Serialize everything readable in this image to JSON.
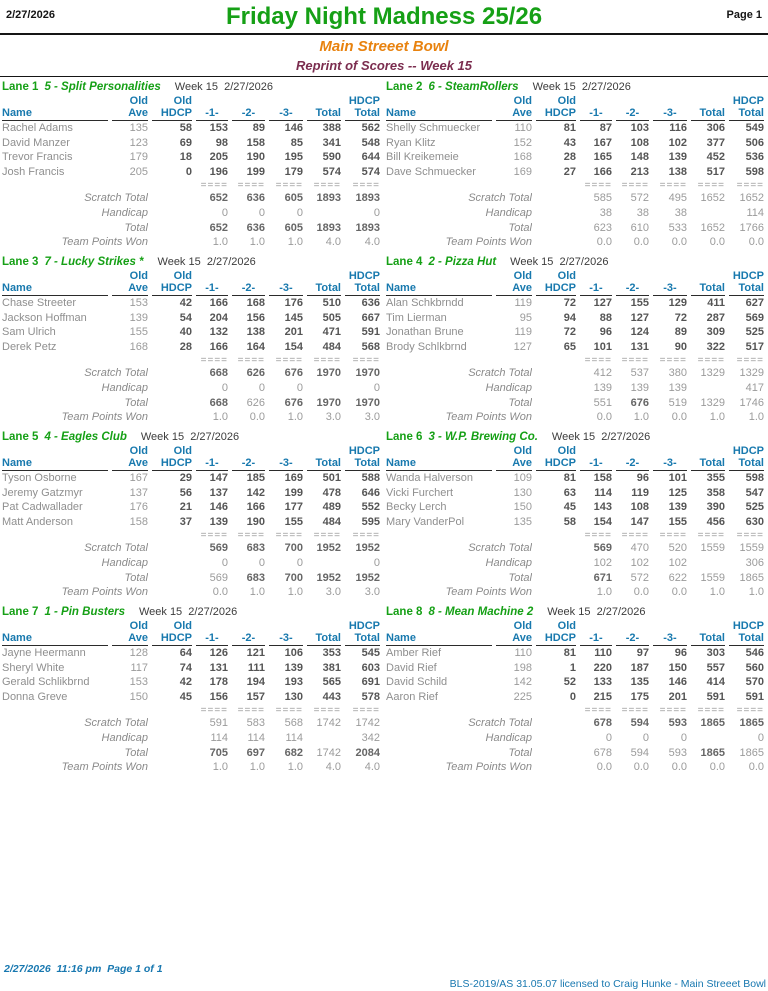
{
  "header": {
    "date": "2/27/2026",
    "title": "Friday Night Madness 25/26",
    "page": "Page 1",
    "venue": "Main Streeet Bowl",
    "subtitle": "Reprint of Scores -- Week 15"
  },
  "footer": {
    "left": "2/27/2026  11:16 pm  Page 1 of 1",
    "right": "BLS-2019/AS 31.05.07 licensed to Craig Hunke - Main Streeet Bowl"
  },
  "labels": {
    "week": "Week 15  2/27/2026",
    "old": "Old",
    "hdcp_top": "HDCP",
    "name": "Name",
    "ave": "Ave",
    "hdcp": "HDCP",
    "g1": "-1-",
    "g2": "-2-",
    "g3": "-3-",
    "total": "Total",
    "hdcp_total": "Total",
    "scratch": "Scratch Total",
    "handicap": "Handicap",
    "total_row": "Total",
    "points": "Team Points Won",
    "sep": "===="
  },
  "colors": {
    "title_green": "#16A016",
    "venue_orange": "#E8820E",
    "subtitle_maroon": "#7B2D4F",
    "header_teal": "#1879AE",
    "footer_blue": "#1878B0"
  },
  "lanes": [
    {
      "lane": "Lane 1",
      "team": "5 - Split Personalities",
      "players": [
        {
          "name": "Rachel Adams",
          "ave": "135",
          "hdcp": "58",
          "g1": "153",
          "g2": "89",
          "g3": "146",
          "total": "388",
          "ht": "562"
        },
        {
          "name": "David Manzer",
          "ave": "123",
          "hdcp": "69",
          "g1": "98",
          "g2": "158",
          "g3": "85",
          "total": "341",
          "ht": "548"
        },
        {
          "name": "Trevor Francis",
          "ave": "179",
          "hdcp": "18",
          "g1": "205",
          "g2": "190",
          "g3": "195",
          "total": "590",
          "ht": "644"
        },
        {
          "name": "Josh Francis",
          "ave": "205",
          "hdcp": "0",
          "g1": "196",
          "g2": "199",
          "g3": "179",
          "total": "574",
          "ht": "574"
        }
      ],
      "scratch": {
        "g1": "652",
        "g2": "636",
        "g3": "605",
        "total": "1893",
        "ht": "1893"
      },
      "scratch_bold": [
        1,
        1,
        1,
        1,
        1
      ],
      "handicap": {
        "g1": "0",
        "g2": "0",
        "g3": "0",
        "total": "",
        "ht": "0"
      },
      "total": {
        "g1": "652",
        "g2": "636",
        "g3": "605",
        "total": "1893",
        "ht": "1893"
      },
      "total_bold": [
        1,
        1,
        1,
        1,
        1
      ],
      "points": {
        "g1": "1.0",
        "g2": "1.0",
        "g3": "1.0",
        "total": "4.0",
        "ht": "4.0"
      }
    },
    {
      "lane": "Lane 2",
      "team": "6 - SteamRollers",
      "players": [
        {
          "name": "Shelly Schmuecker",
          "ave": "110",
          "hdcp": "81",
          "g1": "87",
          "g2": "103",
          "g3": "116",
          "total": "306",
          "ht": "549"
        },
        {
          "name": "Ryan Klitz",
          "ave": "152",
          "hdcp": "43",
          "g1": "167",
          "g2": "108",
          "g3": "102",
          "total": "377",
          "ht": "506"
        },
        {
          "name": "Bill Kreikemeie",
          "ave": "168",
          "hdcp": "28",
          "g1": "165",
          "g2": "148",
          "g3": "139",
          "total": "452",
          "ht": "536"
        },
        {
          "name": "Dave Schmuecker",
          "ave": "169",
          "hdcp": "27",
          "g1": "166",
          "g2": "213",
          "g3": "138",
          "total": "517",
          "ht": "598"
        }
      ],
      "scratch": {
        "g1": "585",
        "g2": "572",
        "g3": "495",
        "total": "1652",
        "ht": "1652"
      },
      "scratch_bold": [
        0,
        0,
        0,
        0,
        0
      ],
      "handicap": {
        "g1": "38",
        "g2": "38",
        "g3": "38",
        "total": "",
        "ht": "114"
      },
      "total": {
        "g1": "623",
        "g2": "610",
        "g3": "533",
        "total": "1652",
        "ht": "1766"
      },
      "total_bold": [
        0,
        0,
        0,
        0,
        0
      ],
      "points": {
        "g1": "0.0",
        "g2": "0.0",
        "g3": "0.0",
        "total": "0.0",
        "ht": "0.0"
      }
    },
    {
      "lane": "Lane 3",
      "team": "7 - Lucky Strikes *",
      "players": [
        {
          "name": "Chase Streeter",
          "ave": "153",
          "hdcp": "42",
          "g1": "166",
          "g2": "168",
          "g3": "176",
          "total": "510",
          "ht": "636"
        },
        {
          "name": "Jackson Hoffman",
          "ave": "139",
          "hdcp": "54",
          "g1": "204",
          "g2": "156",
          "g3": "145",
          "total": "505",
          "ht": "667"
        },
        {
          "name": "Sam Ulrich",
          "ave": "155",
          "hdcp": "40",
          "g1": "132",
          "g2": "138",
          "g3": "201",
          "total": "471",
          "ht": "591"
        },
        {
          "name": "Derek Petz",
          "ave": "168",
          "hdcp": "28",
          "g1": "166",
          "g2": "164",
          "g3": "154",
          "total": "484",
          "ht": "568"
        }
      ],
      "scratch": {
        "g1": "668",
        "g2": "626",
        "g3": "676",
        "total": "1970",
        "ht": "1970"
      },
      "scratch_bold": [
        1,
        1,
        1,
        1,
        1
      ],
      "handicap": {
        "g1": "0",
        "g2": "0",
        "g3": "0",
        "total": "",
        "ht": "0"
      },
      "total": {
        "g1": "668",
        "g2": "626",
        "g3": "676",
        "total": "1970",
        "ht": "1970"
      },
      "total_bold": [
        1,
        0,
        1,
        1,
        1
      ],
      "points": {
        "g1": "1.0",
        "g2": "0.0",
        "g3": "1.0",
        "total": "3.0",
        "ht": "3.0"
      }
    },
    {
      "lane": "Lane 4",
      "team": "2 - Pizza Hut",
      "players": [
        {
          "name": "Alan Schkbrndd",
          "ave": "119",
          "hdcp": "72",
          "g1": "127",
          "g2": "155",
          "g3": "129",
          "total": "411",
          "ht": "627"
        },
        {
          "name": "Tim Lierman",
          "ave": "95",
          "hdcp": "94",
          "g1": "88",
          "g2": "127",
          "g3": "72",
          "total": "287",
          "ht": "569"
        },
        {
          "name": "Jonathan Brune",
          "ave": "119",
          "hdcp": "72",
          "g1": "96",
          "g2": "124",
          "g3": "89",
          "total": "309",
          "ht": "525"
        },
        {
          "name": "Brody Schlkbrnd",
          "ave": "127",
          "hdcp": "65",
          "g1": "101",
          "g2": "131",
          "g3": "90",
          "total": "322",
          "ht": "517"
        }
      ],
      "scratch": {
        "g1": "412",
        "g2": "537",
        "g3": "380",
        "total": "1329",
        "ht": "1329"
      },
      "scratch_bold": [
        0,
        0,
        0,
        0,
        0
      ],
      "handicap": {
        "g1": "139",
        "g2": "139",
        "g3": "139",
        "total": "",
        "ht": "417"
      },
      "total": {
        "g1": "551",
        "g2": "676",
        "g3": "519",
        "total": "1329",
        "ht": "1746"
      },
      "total_bold": [
        0,
        1,
        0,
        0,
        0
      ],
      "points": {
        "g1": "0.0",
        "g2": "1.0",
        "g3": "0.0",
        "total": "1.0",
        "ht": "1.0"
      }
    },
    {
      "lane": "Lane 5",
      "team": "4 - Eagles Club",
      "players": [
        {
          "name": "Tyson Osborne",
          "ave": "167",
          "hdcp": "29",
          "g1": "147",
          "g2": "185",
          "g3": "169",
          "total": "501",
          "ht": "588"
        },
        {
          "name": "Jeremy Gatzmyr",
          "ave": "137",
          "hdcp": "56",
          "g1": "137",
          "g2": "142",
          "g3": "199",
          "total": "478",
          "ht": "646"
        },
        {
          "name": "Pat Cadwallader",
          "ave": "176",
          "hdcp": "21",
          "g1": "146",
          "g2": "166",
          "g3": "177",
          "total": "489",
          "ht": "552"
        },
        {
          "name": "Matt Anderson",
          "ave": "158",
          "hdcp": "37",
          "g1": "139",
          "g2": "190",
          "g3": "155",
          "total": "484",
          "ht": "595"
        }
      ],
      "scratch": {
        "g1": "569",
        "g2": "683",
        "g3": "700",
        "total": "1952",
        "ht": "1952"
      },
      "scratch_bold": [
        1,
        1,
        1,
        1,
        1
      ],
      "handicap": {
        "g1": "0",
        "g2": "0",
        "g3": "0",
        "total": "",
        "ht": "0"
      },
      "total": {
        "g1": "569",
        "g2": "683",
        "g3": "700",
        "total": "1952",
        "ht": "1952"
      },
      "total_bold": [
        0,
        1,
        1,
        1,
        1
      ],
      "points": {
        "g1": "0.0",
        "g2": "1.0",
        "g3": "1.0",
        "total": "3.0",
        "ht": "3.0"
      }
    },
    {
      "lane": "Lane 6",
      "team": "3 - W.P. Brewing Co.",
      "players": [
        {
          "name": "Wanda Halverson",
          "ave": "109",
          "hdcp": "81",
          "g1": "158",
          "g2": "96",
          "g3": "101",
          "total": "355",
          "ht": "598"
        },
        {
          "name": "Vicki Furchert",
          "ave": "130",
          "hdcp": "63",
          "g1": "114",
          "g2": "119",
          "g3": "125",
          "total": "358",
          "ht": "547"
        },
        {
          "name": "Becky Lerch",
          "ave": "150",
          "hdcp": "45",
          "g1": "143",
          "g2": "108",
          "g3": "139",
          "total": "390",
          "ht": "525"
        },
        {
          "name": "Mary VanderPol",
          "ave": "135",
          "hdcp": "58",
          "g1": "154",
          "g2": "147",
          "g3": "155",
          "total": "456",
          "ht": "630"
        }
      ],
      "scratch": {
        "g1": "569",
        "g2": "470",
        "g3": "520",
        "total": "1559",
        "ht": "1559"
      },
      "scratch_bold": [
        1,
        0,
        0,
        0,
        0
      ],
      "handicap": {
        "g1": "102",
        "g2": "102",
        "g3": "102",
        "total": "",
        "ht": "306"
      },
      "total": {
        "g1": "671",
        "g2": "572",
        "g3": "622",
        "total": "1559",
        "ht": "1865"
      },
      "total_bold": [
        1,
        0,
        0,
        0,
        0
      ],
      "points": {
        "g1": "1.0",
        "g2": "0.0",
        "g3": "0.0",
        "total": "1.0",
        "ht": "1.0"
      }
    },
    {
      "lane": "Lane 7",
      "team": "1 - Pin Busters",
      "players": [
        {
          "name": "Jayne Heermann",
          "ave": "128",
          "hdcp": "64",
          "g1": "126",
          "g2": "121",
          "g3": "106",
          "total": "353",
          "ht": "545"
        },
        {
          "name": "Sheryl White",
          "ave": "117",
          "hdcp": "74",
          "g1": "131",
          "g2": "111",
          "g3": "139",
          "total": "381",
          "ht": "603"
        },
        {
          "name": "Gerald Schlikbrnd",
          "ave": "153",
          "hdcp": "42",
          "g1": "178",
          "g2": "194",
          "g3": "193",
          "total": "565",
          "ht": "691"
        },
        {
          "name": "Donna Greve",
          "ave": "150",
          "hdcp": "45",
          "g1": "156",
          "g2": "157",
          "g3": "130",
          "total": "443",
          "ht": "578"
        }
      ],
      "scratch": {
        "g1": "591",
        "g2": "583",
        "g3": "568",
        "total": "1742",
        "ht": "1742"
      },
      "scratch_bold": [
        0,
        0,
        0,
        0,
        0
      ],
      "handicap": {
        "g1": "114",
        "g2": "114",
        "g3": "114",
        "total": "",
        "ht": "342"
      },
      "total": {
        "g1": "705",
        "g2": "697",
        "g3": "682",
        "total": "1742",
        "ht": "2084"
      },
      "total_bold": [
        1,
        1,
        1,
        0,
        1
      ],
      "points": {
        "g1": "1.0",
        "g2": "1.0",
        "g3": "1.0",
        "total": "4.0",
        "ht": "4.0"
      }
    },
    {
      "lane": "Lane 8",
      "team": "8 - Mean Machine 2",
      "players": [
        {
          "name": "Amber Rief",
          "ave": "110",
          "hdcp": "81",
          "g1": "110",
          "g2": "97",
          "g3": "96",
          "total": "303",
          "ht": "546"
        },
        {
          "name": "David Rief",
          "ave": "198",
          "hdcp": "1",
          "g1": "220",
          "g2": "187",
          "g3": "150",
          "total": "557",
          "ht": "560"
        },
        {
          "name": "David Schild",
          "ave": "142",
          "hdcp": "52",
          "g1": "133",
          "g2": "135",
          "g3": "146",
          "total": "414",
          "ht": "570"
        },
        {
          "name": "Aaron Rief",
          "ave": "225",
          "hdcp": "0",
          "g1": "215",
          "g2": "175",
          "g3": "201",
          "total": "591",
          "ht": "591"
        }
      ],
      "scratch": {
        "g1": "678",
        "g2": "594",
        "g3": "593",
        "total": "1865",
        "ht": "1865"
      },
      "scratch_bold": [
        1,
        1,
        1,
        1,
        1
      ],
      "handicap": {
        "g1": "0",
        "g2": "0",
        "g3": "0",
        "total": "",
        "ht": "0"
      },
      "total": {
        "g1": "678",
        "g2": "594",
        "g3": "593",
        "total": "1865",
        "ht": "1865"
      },
      "total_bold": [
        0,
        0,
        0,
        1,
        0
      ],
      "points": {
        "g1": "0.0",
        "g2": "0.0",
        "g3": "0.0",
        "total": "0.0",
        "ht": "0.0"
      }
    }
  ]
}
